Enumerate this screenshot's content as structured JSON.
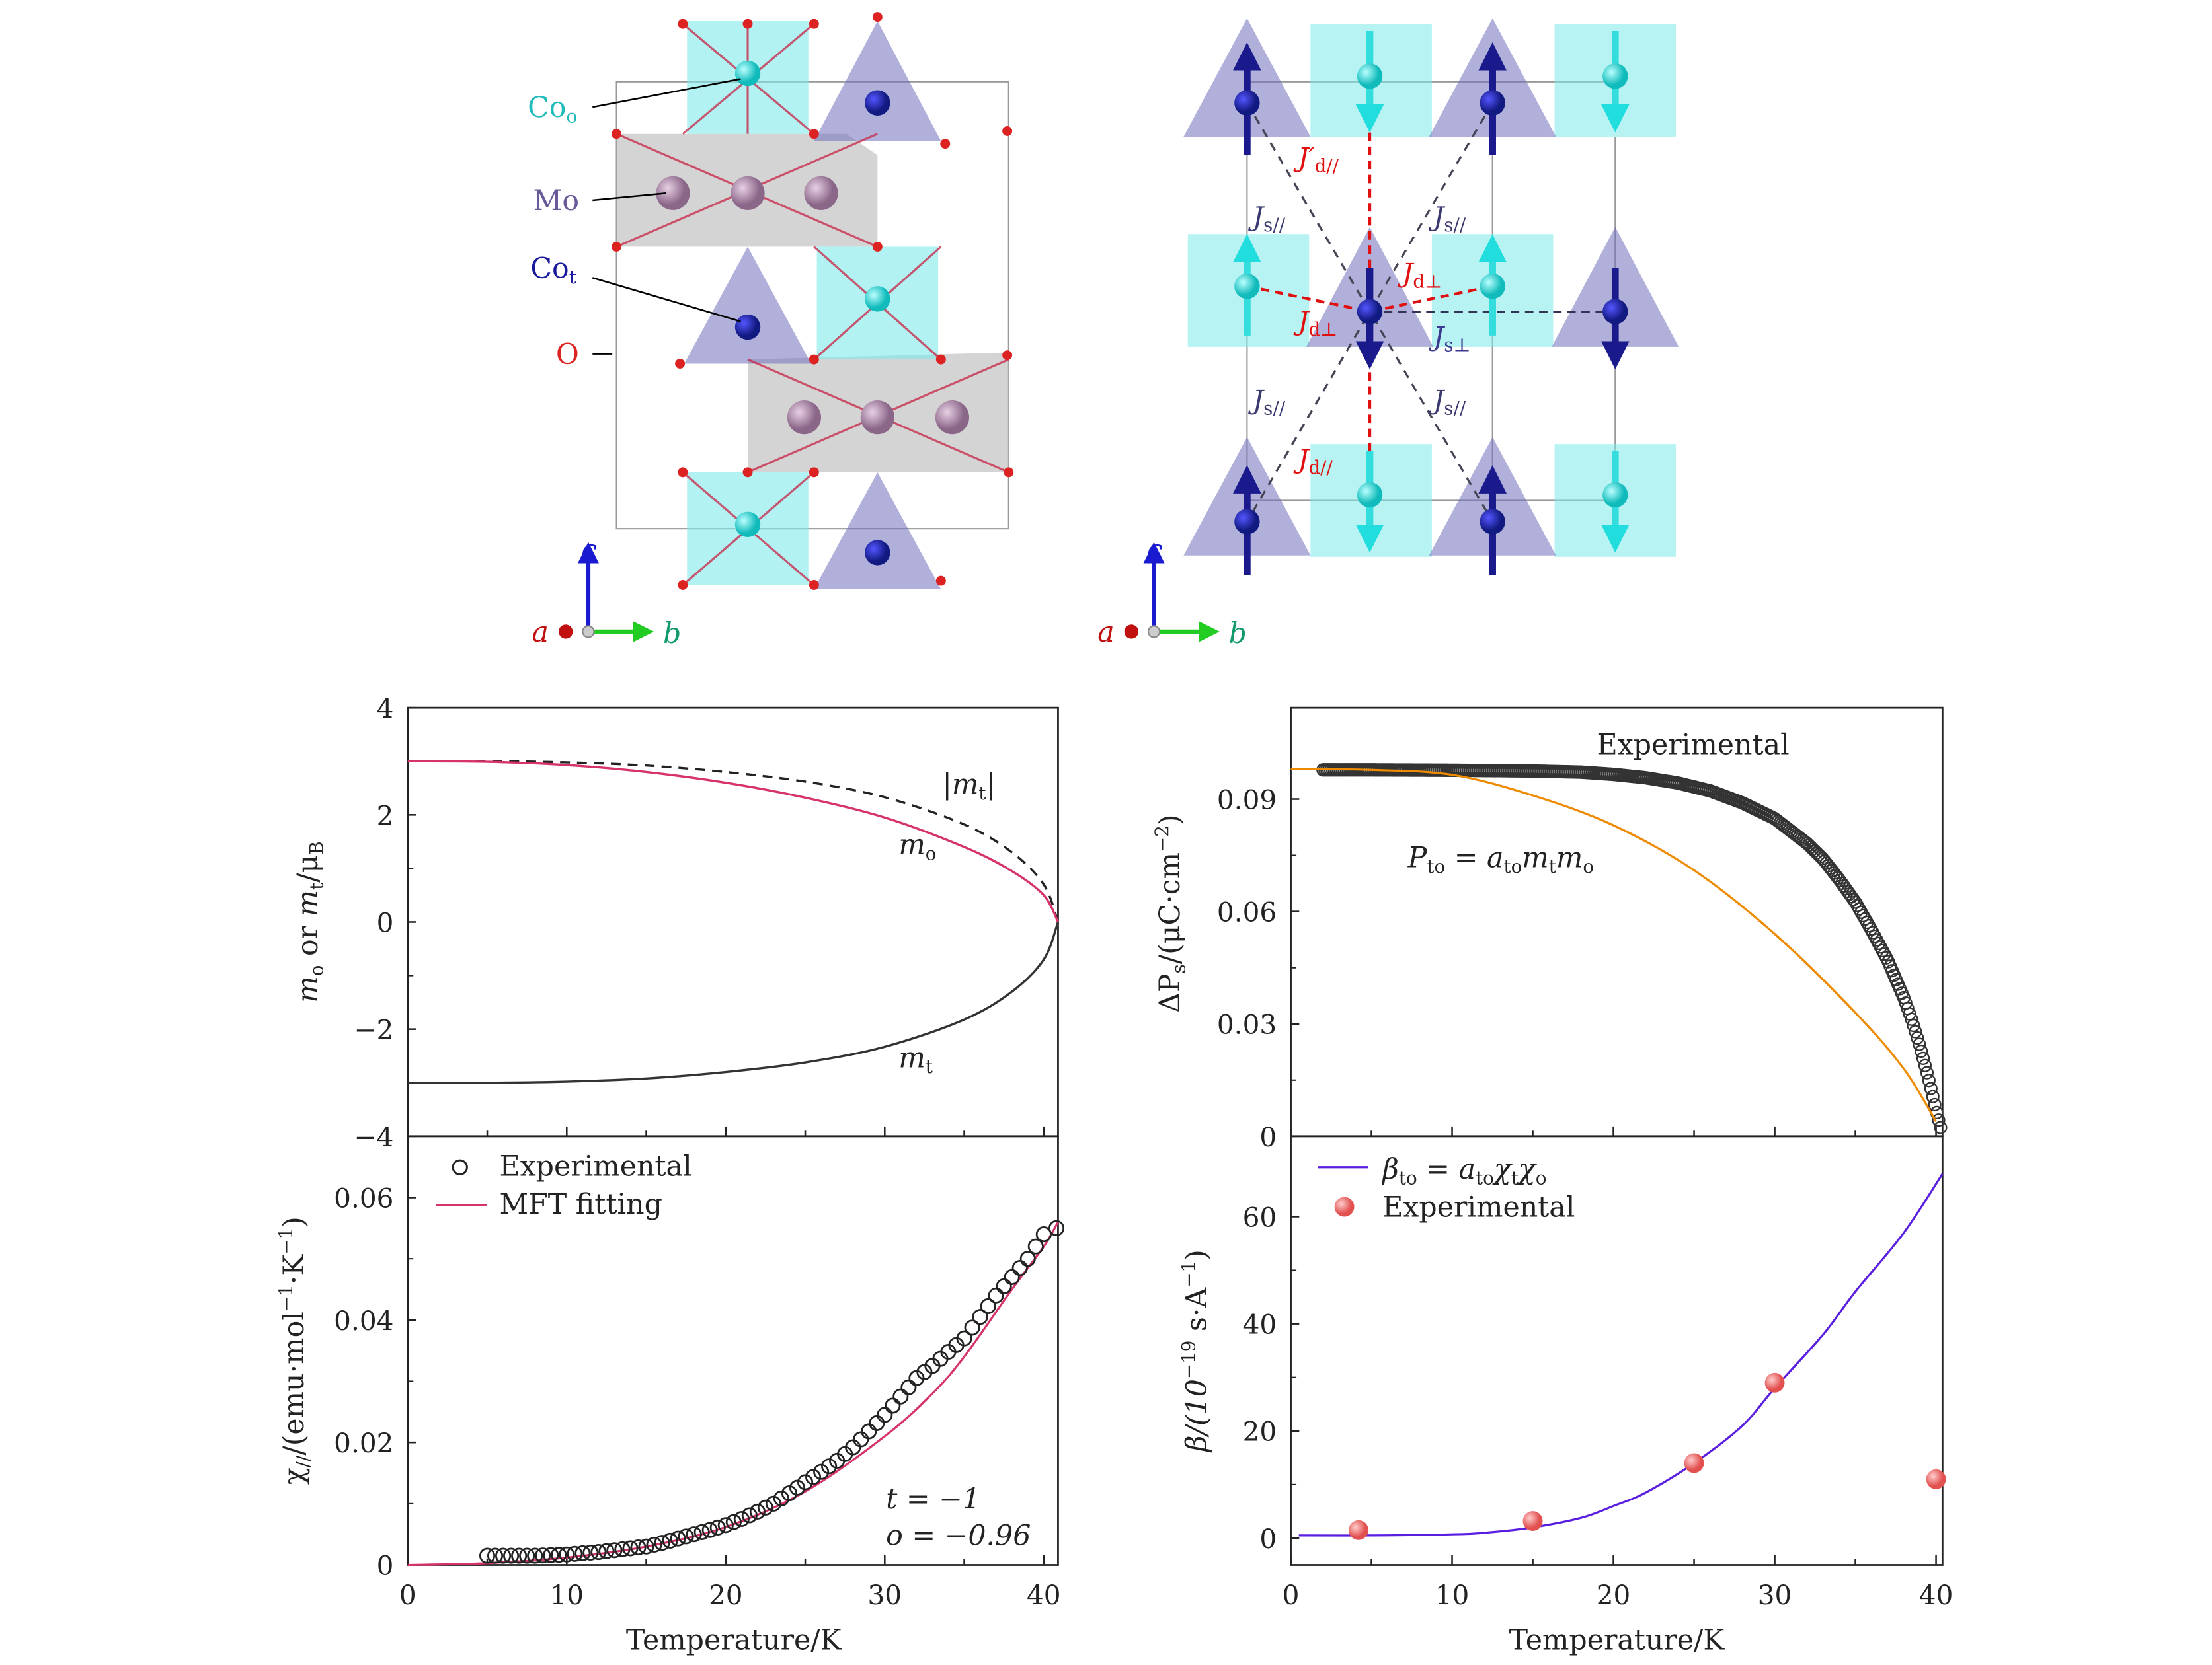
{
  "structure_left": {
    "labels": {
      "co_o": "Co",
      "co_o_sub": "o",
      "mo": "Mo",
      "co_t": "Co",
      "co_t_sub": "t",
      "o": "O"
    },
    "axes": {
      "a": "a",
      "b": "b",
      "c": "c"
    }
  },
  "structure_right": {
    "labels": {
      "jd_prime_par": "J′",
      "jd_prime_par_sub": "d//",
      "js_par": "J",
      "js_par_sub": "s//",
      "jd_perp": "J",
      "jd_perp_sub": "d⊥",
      "js_perp": "J",
      "js_perp_sub": "s⊥",
      "jd_par": "J",
      "jd_par_sub": "d//"
    },
    "axes": {
      "a": "a",
      "b": "b",
      "c": "c"
    }
  },
  "colors": {
    "co_o": "#22cccc",
    "co_t": "#1a1a8c",
    "mo": "#a07a9a",
    "o": "#dd2222",
    "mo_fit": "#d6336c",
    "p_fit": "#ee8a00",
    "beta_fit": "#5a1ee0",
    "exp_red": "#f26a6a"
  },
  "chart_data": [
    {
      "type": "line",
      "ylabel": "m_o or m_t/μ_B",
      "ylabel_parts": {
        "a": "m",
        "a_sub": "o",
        "or": " or ",
        "b": "m",
        "b_sub": "t",
        "slash": "/μ",
        "mu_sub": "B"
      },
      "xlim": [
        0,
        40.9
      ],
      "ylim": [
        -4,
        4
      ],
      "yticks": [
        "4",
        "2",
        "0",
        "−2",
        "−4"
      ],
      "series": [
        {
          "name": "|m_t|",
          "label_main": "|m",
          "label_sub": "t",
          "label_end": "|",
          "style": "dashed",
          "color": "#222222",
          "x": [
            0,
            5,
            10,
            15,
            20,
            25,
            30,
            35,
            38,
            40,
            40.9
          ],
          "y": [
            3.0,
            3.0,
            2.98,
            2.92,
            2.8,
            2.62,
            2.33,
            1.82,
            1.3,
            0.7,
            0
          ]
        },
        {
          "name": "m_o",
          "label_main": "m",
          "label_sub": "o",
          "style": "solid",
          "color": "#d6336c",
          "x": [
            0,
            5,
            10,
            15,
            20,
            25,
            30,
            35,
            38,
            40,
            40.9
          ],
          "y": [
            3.0,
            2.99,
            2.93,
            2.8,
            2.6,
            2.32,
            1.95,
            1.4,
            0.95,
            0.5,
            0
          ]
        },
        {
          "name": "m_t",
          "label_main": "m",
          "label_sub": "t",
          "style": "solid",
          "color": "#333333",
          "x": [
            0,
            5,
            10,
            15,
            20,
            25,
            30,
            35,
            38,
            40,
            40.9
          ],
          "y": [
            -3.0,
            -3.0,
            -2.98,
            -2.92,
            -2.8,
            -2.62,
            -2.33,
            -1.82,
            -1.3,
            -0.7,
            0
          ]
        }
      ]
    },
    {
      "type": "scatter+line",
      "xlabel": "Temperature/K",
      "ylabel": "χ///(emu·mol−1·K−1)",
      "ylabel_parts": {
        "chi": "χ",
        "chi_sub": "//",
        "rest": "/(emu·mol",
        "e1": "−1",
        "mid": "·K",
        "e2": "−1",
        "end": ")"
      },
      "xlim": [
        0,
        40.9
      ],
      "ylim": [
        0,
        0.07
      ],
      "xticks": [
        "0",
        "10",
        "20",
        "30",
        "40"
      ],
      "yticks": [
        "0",
        "0.02",
        "0.04",
        "0.06"
      ],
      "legend": [
        "Experimental",
        "MFT fitting"
      ],
      "legend_position": "top-left",
      "annotation": [
        "t = −1",
        "o = −0.96"
      ],
      "experimental": {
        "x": [
          5,
          5.5,
          6,
          7,
          7.5,
          8,
          9,
          10,
          11,
          12,
          13,
          14,
          15,
          16,
          17,
          18,
          19,
          20,
          21,
          22,
          23,
          24,
          25,
          26,
          27,
          28,
          29,
          30,
          31,
          32,
          33,
          34,
          35,
          36,
          37,
          38,
          39,
          40,
          40.8
        ],
        "y": [
          0.0015,
          0.0015,
          0.0015,
          0.0015,
          0.0015,
          0.0015,
          0.0016,
          0.0017,
          0.0019,
          0.0021,
          0.0024,
          0.0027,
          0.003,
          0.0036,
          0.0043,
          0.005,
          0.0057,
          0.0065,
          0.0075,
          0.0087,
          0.01,
          0.0117,
          0.0135,
          0.0152,
          0.017,
          0.0192,
          0.0218,
          0.0245,
          0.0275,
          0.0305,
          0.0325,
          0.0348,
          0.037,
          0.0405,
          0.044,
          0.047,
          0.05,
          0.054,
          0.055
        ]
      },
      "fit": {
        "x": [
          0,
          5,
          10,
          15,
          20,
          25,
          30,
          33,
          35,
          38,
          40,
          40.9
        ],
        "y": [
          0,
          0.0003,
          0.0012,
          0.003,
          0.0062,
          0.012,
          0.021,
          0.028,
          0.034,
          0.045,
          0.052,
          0.056
        ]
      }
    },
    {
      "type": "scatter+line",
      "ylabel": "ΔPs/(μC·cm−2)",
      "ylabel_parts": {
        "a": "ΔP",
        "a_sub": "s",
        "rest": "/(μC·cm",
        "e": "−2",
        "end": ")"
      },
      "xlim": [
        0,
        40.4
      ],
      "ylim": [
        0,
        0.1144
      ],
      "yticks": [
        "0",
        "0.03",
        "0.06",
        "0.09"
      ],
      "series_label": "Experimental",
      "fit_label": {
        "p": "P",
        "p_sub": "to",
        "eq": " = a",
        "a_sub": "to",
        "m1": "m",
        "m1_sub": "t",
        "m2": "m",
        "m2_sub": "o"
      },
      "experimental": {
        "x": [
          2,
          5,
          10,
          15,
          18,
          20,
          22,
          24,
          26,
          28,
          30,
          32,
          33,
          34,
          35,
          36,
          37,
          38,
          38.5,
          39,
          39.5,
          40,
          40.3
        ],
        "y": [
          0.0978,
          0.0978,
          0.0977,
          0.0975,
          0.0972,
          0.0966,
          0.0957,
          0.0943,
          0.0922,
          0.089,
          0.0848,
          0.0782,
          0.074,
          0.0685,
          0.0625,
          0.055,
          0.047,
          0.037,
          0.031,
          0.024,
          0.016,
          0.007,
          0.002
        ]
      },
      "fit": {
        "x": [
          0,
          5,
          10,
          15,
          20,
          25,
          30,
          35,
          38,
          40
        ],
        "y": [
          0.098,
          0.0978,
          0.0965,
          0.091,
          0.083,
          0.071,
          0.054,
          0.033,
          0.018,
          0.004
        ]
      }
    },
    {
      "type": "scatter+line",
      "xlabel": "Temperature/K",
      "ylabel": "β/(10−19 s·A−1)",
      "ylabel_parts": {
        "a": "β/(10",
        "e1": "−19",
        "mid": " s·A",
        "e2": "−1",
        "end": ")"
      },
      "xlim": [
        0,
        40.4
      ],
      "ylim": [
        -5,
        75
      ],
      "xticks": [
        "0",
        "10",
        "20",
        "30",
        "40"
      ],
      "yticks": [
        "0",
        "20",
        "40",
        "60"
      ],
      "legend_fit": {
        "b": "β",
        "b_sub": "to",
        "eq": " = a",
        "a_sub": "to",
        "c1": "χ",
        "c1_sub": "t",
        "c2": "χ",
        "c2_sub": "o"
      },
      "legend_exp": "Experimental",
      "legend_position": "top-left",
      "experimental": {
        "x": [
          4.2,
          15,
          25,
          30,
          40
        ],
        "y": [
          1.5,
          3.2,
          14,
          29,
          11
        ]
      },
      "fit": {
        "x": [
          0.5,
          5,
          10,
          12,
          15,
          18,
          20,
          22,
          25,
          28,
          30,
          33,
          35,
          38,
          40.4
        ],
        "y": [
          0.5,
          0.5,
          0.7,
          1.0,
          2.0,
          3.8,
          6,
          8.5,
          14,
          21,
          28,
          38,
          46,
          57,
          68
        ]
      }
    }
  ]
}
